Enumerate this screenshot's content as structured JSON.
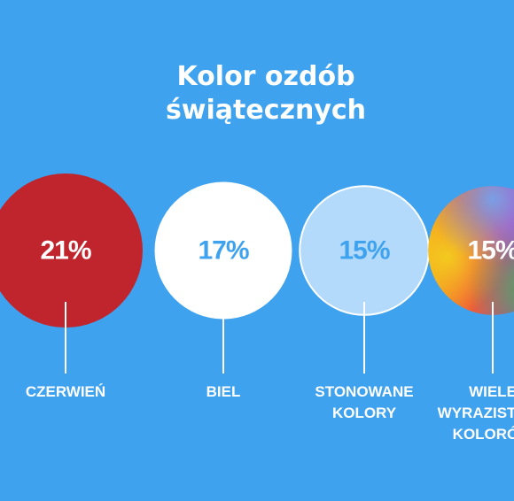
{
  "colors": {
    "background": "#3fa2ee",
    "text": "#ffffff",
    "czerwien": "#c0252d",
    "biel": "#ffffff",
    "stonowane": "#b3dafb",
    "percent_on_light": "#3fa2ee"
  },
  "title": {
    "line1": "Kolor ozdób",
    "line2": "świątecznych"
  },
  "chart_data": {
    "type": "bubble",
    "unit": "%",
    "title": "Kolor ozdób świątecznych",
    "categories": [
      "CZERWIEŃ",
      "BIEL",
      "STONOWANE KOLORY",
      "WIELE WYRAZISTYCH KOLORÓW"
    ],
    "values": [
      21,
      17,
      15,
      15
    ],
    "items": [
      {
        "label_lines": [
          "CZERWIEŃ"
        ],
        "value": 21,
        "display": "21%",
        "fill": "#c0252d",
        "text_color": "#ffffff"
      },
      {
        "label_lines": [
          "BIEL"
        ],
        "value": 17,
        "display": "17%",
        "fill": "#ffffff",
        "text_color": "#3fa2ee"
      },
      {
        "label_lines": [
          "STONOWANE",
          "KOLORY"
        ],
        "value": 15,
        "display": "15%",
        "fill": "#b3dafb",
        "text_color": "#3fa2ee"
      },
      {
        "label_lines": [
          "WIELE",
          "WYRAZISTYCH",
          "KOLORÓW"
        ],
        "value": 15,
        "display": "15%",
        "fill": "rainbow-gradient",
        "text_color": "#ffffff"
      }
    ]
  }
}
